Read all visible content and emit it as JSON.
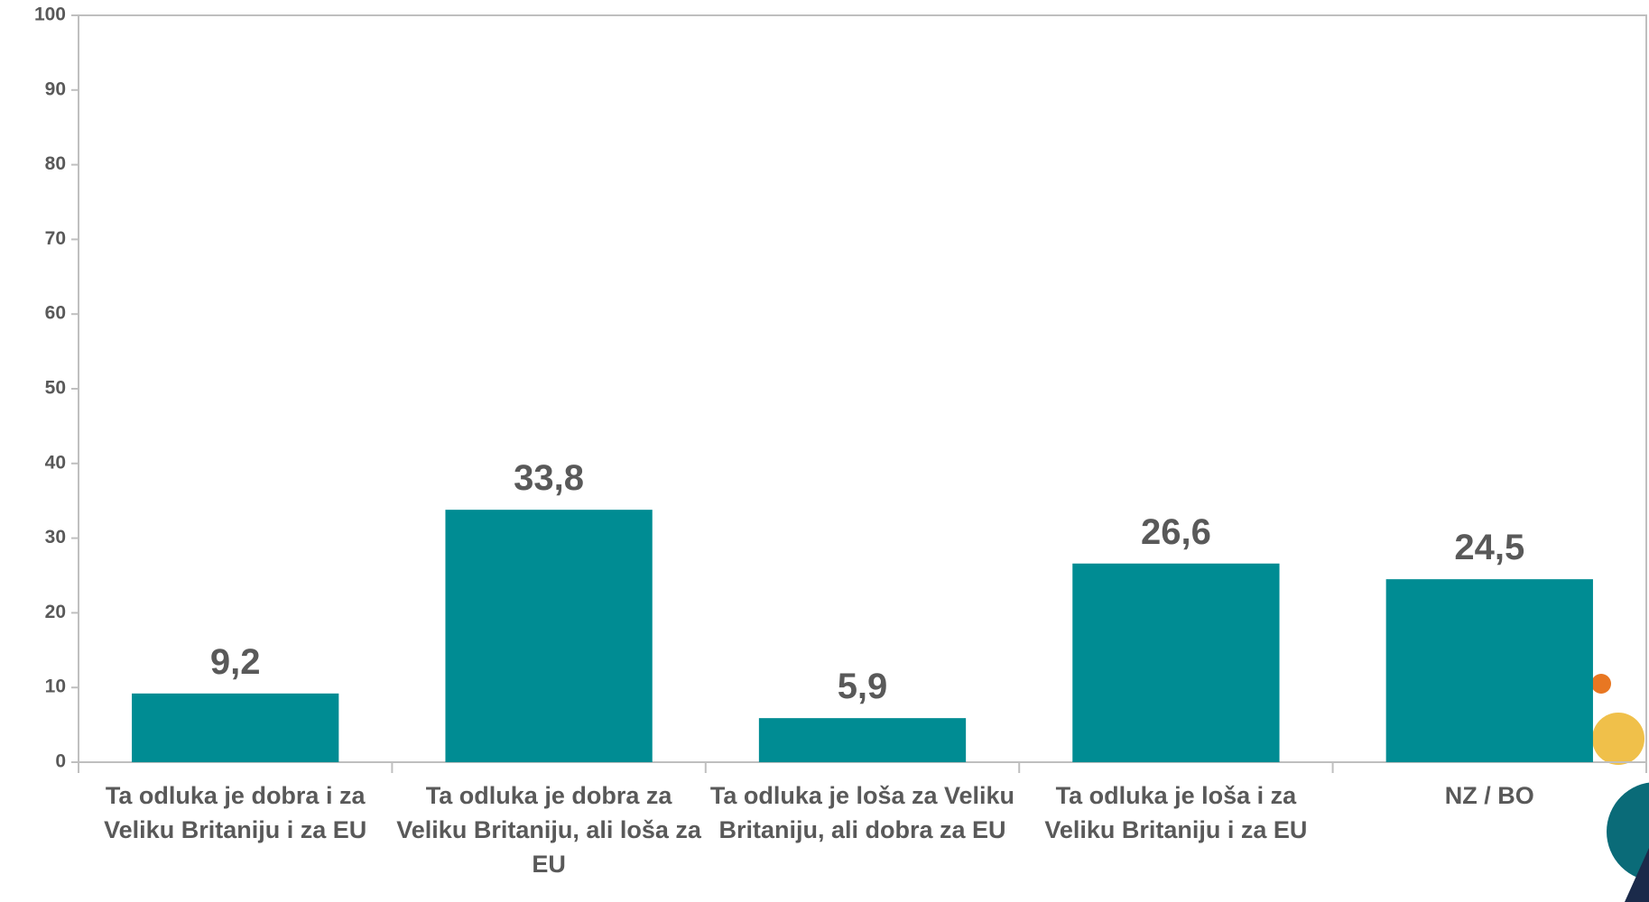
{
  "chart_data": {
    "type": "bar",
    "categories": [
      "Ta odluka je dobra i za Veliku Britaniju i za EU",
      "Ta odluka je dobra za Veliku Britaniju, ali loša za EU",
      "Ta odluka je loša za Veliku Britaniju, ali dobra za EU",
      "Ta odluka je loša i za Veliku Britaniju i za EU",
      "NZ / BO"
    ],
    "values": [
      9.2,
      33.8,
      5.9,
      26.6,
      24.5
    ],
    "value_labels": [
      "9,2",
      "33,8",
      "5,9",
      "26,6",
      "24,5"
    ],
    "color": "#008c93",
    "ylim": [
      0,
      100
    ],
    "yticks": [
      0,
      10,
      20,
      30,
      40,
      50,
      60,
      70,
      80,
      90,
      100
    ],
    "grid": false
  }
}
